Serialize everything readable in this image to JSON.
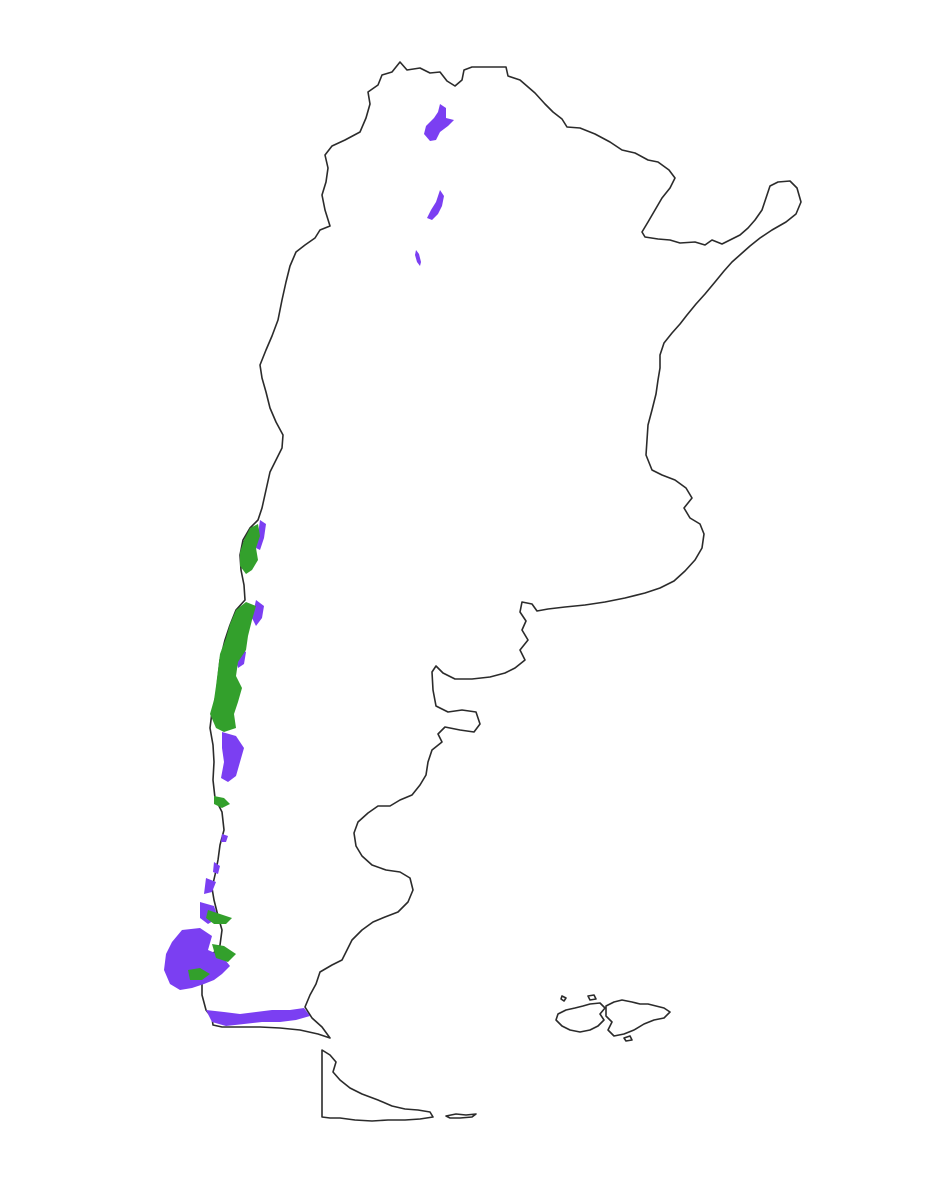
{
  "map": {
    "type": "choropleth-overlay",
    "country": "Argentina",
    "legend": "none",
    "axes": "none",
    "colors": {
      "background": "#ffffff",
      "outline": "#2b2b2b",
      "class_a": "#7b3ff2",
      "class_b": "#33a02c"
    },
    "classes": [
      {
        "id": "class_a",
        "color": "#7b3ff2"
      },
      {
        "id": "class_b",
        "color": "#33a02c"
      }
    ]
  }
}
